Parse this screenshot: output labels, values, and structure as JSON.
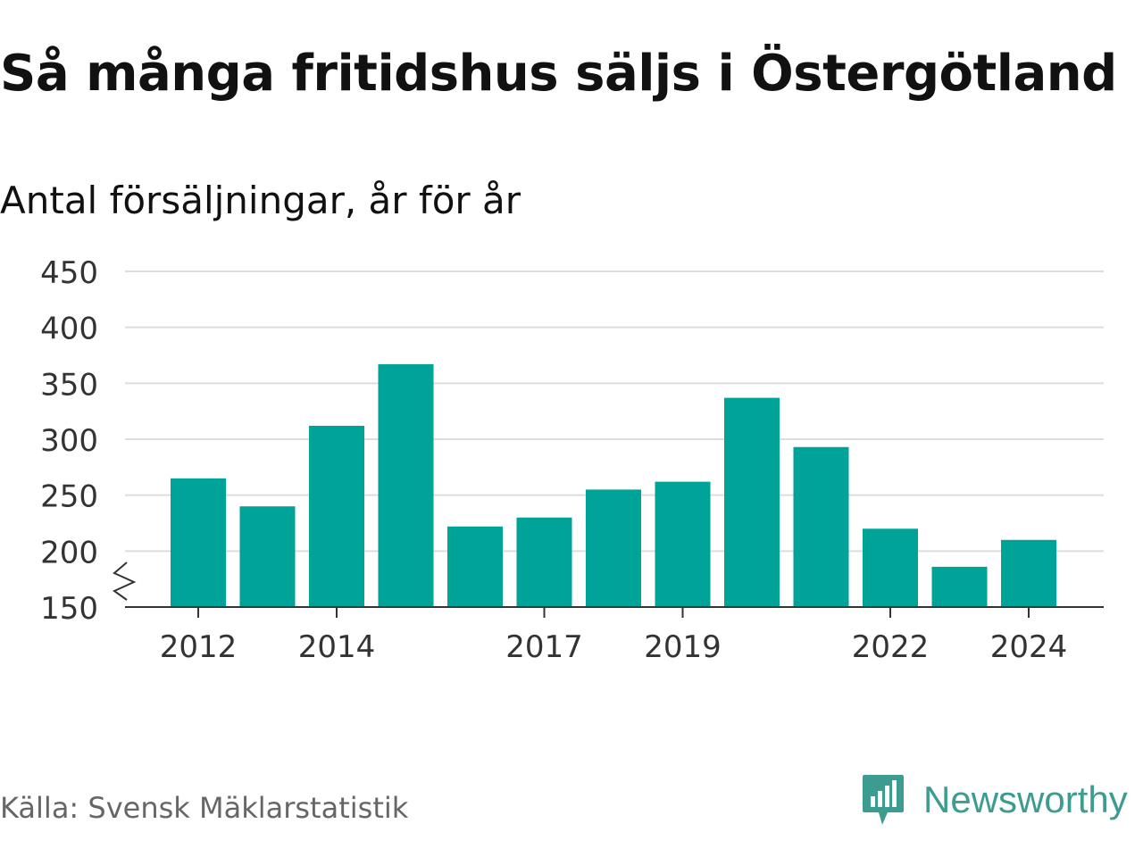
{
  "title": "Så många fritidshus säljs i Östergötland",
  "subtitle": "Antal försäljningar, år för år",
  "source": "Källa: Svensk Mäklarstatistik",
  "brand": {
    "name": "Newsworthy",
    "icon": "newsworthy-chart-bubble-icon",
    "color": "#3d9c90"
  },
  "chart_data": {
    "type": "bar",
    "x": [
      2012,
      2013,
      2014,
      2015,
      2016,
      2017,
      2018,
      2019,
      2020,
      2021,
      2022,
      2023,
      2024
    ],
    "values": [
      265,
      240,
      312,
      367,
      222,
      230,
      255,
      262,
      337,
      293,
      220,
      186,
      210
    ],
    "x_tick_labels": [
      "2012",
      "2014",
      "2017",
      "2019",
      "2022",
      "2024"
    ],
    "y_ticks": [
      150,
      200,
      250,
      300,
      350,
      400,
      450
    ],
    "ylim": [
      150,
      450
    ],
    "axis_break": true,
    "grid": true,
    "bar_color": "#00a398"
  }
}
